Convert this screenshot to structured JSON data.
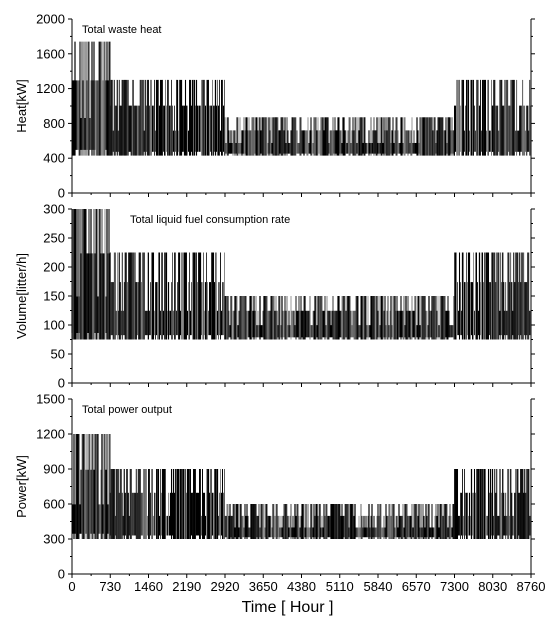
{
  "chart_data": [
    {
      "type": "bar",
      "title": "Total waste heat",
      "ylabel": "Heat[kW]",
      "xlabel": "",
      "ylim": [
        0,
        2000
      ],
      "yticks": [
        0,
        400,
        800,
        1200,
        1600,
        2000
      ],
      "xlim": [
        0,
        8760
      ],
      "xticks": [
        0,
        730,
        1460,
        2190,
        2920,
        3650,
        4380,
        5110,
        5840,
        6570,
        7300,
        8030,
        8760
      ],
      "grid": false,
      "bands": [
        {
          "x_start": 0,
          "x_end": 730,
          "min": 430,
          "max": 1740
        },
        {
          "x_start": 730,
          "x_end": 1460,
          "min": 430,
          "max": 1300
        },
        {
          "x_start": 1460,
          "x_end": 2920,
          "min": 430,
          "max": 1300
        },
        {
          "x_start": 2920,
          "x_end": 7300,
          "min": 430,
          "max": 870
        },
        {
          "x_start": 7300,
          "x_end": 8030,
          "min": 430,
          "max": 1300
        },
        {
          "x_start": 8030,
          "x_end": 8760,
          "min": 430,
          "max": 1300
        }
      ]
    },
    {
      "type": "bar",
      "title": "Total liquid fuel consumption rate",
      "ylabel": "Volume[litter/h]",
      "xlabel": "",
      "ylim": [
        0,
        300
      ],
      "yticks": [
        0,
        50,
        100,
        150,
        200,
        250,
        300
      ],
      "xlim": [
        0,
        8760
      ],
      "xticks": [
        0,
        730,
        1460,
        2190,
        2920,
        3650,
        4380,
        5110,
        5840,
        6570,
        7300,
        8030,
        8760
      ],
      "grid": false,
      "bands": [
        {
          "x_start": 0,
          "x_end": 730,
          "min": 75,
          "max": 300
        },
        {
          "x_start": 730,
          "x_end": 1460,
          "min": 75,
          "max": 225
        },
        {
          "x_start": 1460,
          "x_end": 2920,
          "min": 75,
          "max": 225
        },
        {
          "x_start": 2920,
          "x_end": 7300,
          "min": 75,
          "max": 150
        },
        {
          "x_start": 7300,
          "x_end": 8030,
          "min": 75,
          "max": 225
        },
        {
          "x_start": 8030,
          "x_end": 8760,
          "min": 75,
          "max": 225
        }
      ]
    },
    {
      "type": "bar",
      "title": "Total power output",
      "ylabel": "Power[kW]",
      "xlabel": "Time [ Hour ]",
      "ylim": [
        0,
        1500
      ],
      "yticks": [
        0,
        300,
        600,
        900,
        1200,
        1500
      ],
      "xlim": [
        0,
        8760
      ],
      "xticks": [
        0,
        730,
        1460,
        2190,
        2920,
        3650,
        4380,
        5110,
        5840,
        6570,
        7300,
        8030,
        8760
      ],
      "grid": false,
      "bands": [
        {
          "x_start": 0,
          "x_end": 730,
          "min": 300,
          "max": 1200
        },
        {
          "x_start": 730,
          "x_end": 1460,
          "min": 300,
          "max": 900
        },
        {
          "x_start": 1460,
          "x_end": 2920,
          "min": 300,
          "max": 900
        },
        {
          "x_start": 2920,
          "x_end": 7300,
          "min": 300,
          "max": 600
        },
        {
          "x_start": 7300,
          "x_end": 8030,
          "min": 300,
          "max": 900
        },
        {
          "x_start": 8030,
          "x_end": 8760,
          "min": 300,
          "max": 900
        }
      ]
    }
  ]
}
